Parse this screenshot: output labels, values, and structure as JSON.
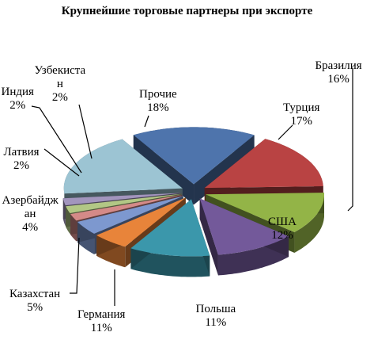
{
  "chart_data": {
    "type": "pie",
    "title": "Крупнейшие торговые партнеры при экспорте",
    "slices": [
      {
        "name": "Бразилия",
        "label": [
          "Бразилия"
        ],
        "value_label": "16%",
        "value": 16,
        "color": "#b94343"
      },
      {
        "name": "США",
        "label": [
          "США"
        ],
        "value_label": "12%",
        "value": 12,
        "color": "#93b447"
      },
      {
        "name": "Польша",
        "label": [
          "Польша"
        ],
        "value_label": "11%",
        "value": 11,
        "color": "#73599a"
      },
      {
        "name": "Германия",
        "label": [
          "Германия"
        ],
        "value_label": "11%",
        "value": 11,
        "color": "#3b97ab"
      },
      {
        "name": "Казахстан",
        "label": [
          "Казахстан"
        ],
        "value_label": "5%",
        "value": 5,
        "color": "#e8843a"
      },
      {
        "name": "Азербайджан",
        "label": [
          "Азербайдж",
          "ан"
        ],
        "value_label": "4%",
        "value": 4,
        "color": "#7d98cf"
      },
      {
        "name": "Латвия",
        "label": [
          "Латвия"
        ],
        "value_label": "2%",
        "value": 2,
        "color": "#d48a88"
      },
      {
        "name": "Индия",
        "label": [
          "Индия"
        ],
        "value_label": "2%",
        "value": 2,
        "color": "#b2c785"
      },
      {
        "name": "Узбекистан",
        "label": [
          "Узбекиста",
          "н"
        ],
        "value_label": "2%",
        "value": 2,
        "color": "#a295bd"
      },
      {
        "name": "Прочие",
        "label": [
          "Прочие"
        ],
        "value_label": "18%",
        "value": 18,
        "color": "#9cc4d3"
      },
      {
        "name": "Турция",
        "label": [
          "Турция"
        ],
        "value_label": "17%",
        "value": 17,
        "color": "#4e74ac"
      }
    ]
  }
}
